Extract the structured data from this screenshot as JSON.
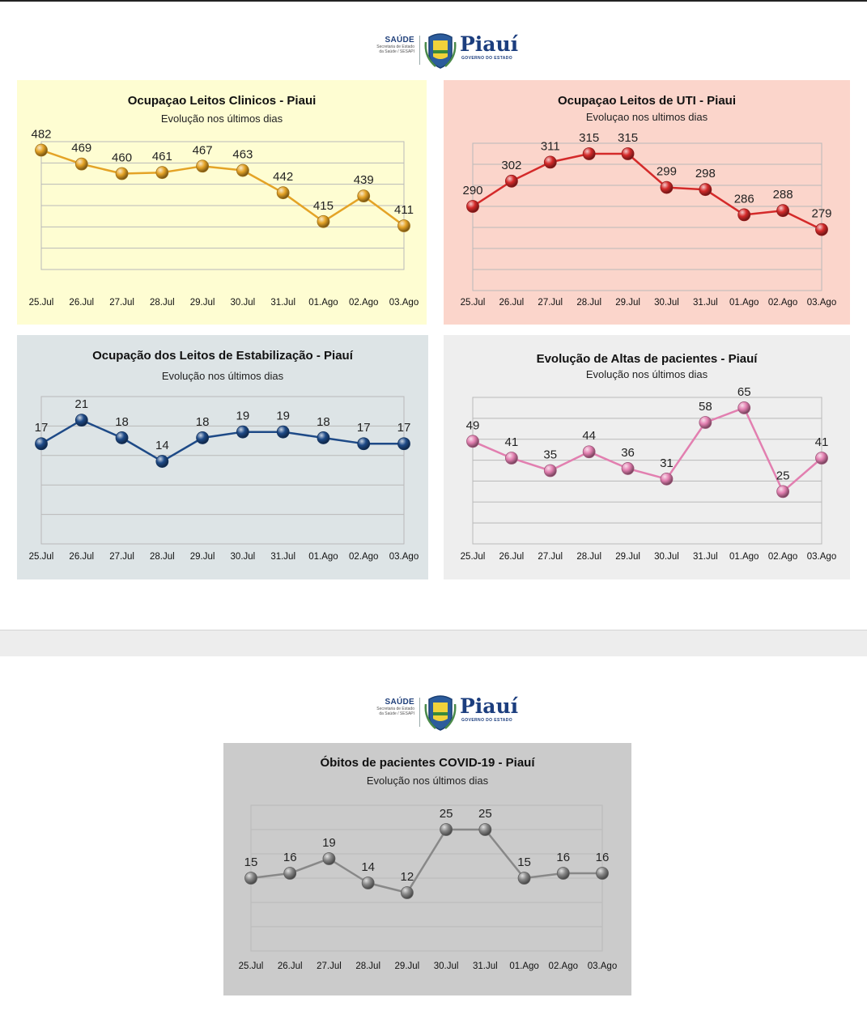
{
  "logo": {
    "saude": "SAÚDE",
    "secretaria_line1": "Secretaria de Estado",
    "secretaria_line2": "da Saúde / SESAPI",
    "state": "Piauí",
    "governo": "GOVERNO DO ESTADO"
  },
  "colors": {
    "panel_clinicos": "#fefdd2",
    "panel_uti": "#fbd5cb",
    "panel_estabilizacao": "#dde4e6",
    "panel_altas": "#eeeeee",
    "panel_obitos": "#cbcbcb",
    "series_clinicos": "#e4a326",
    "series_uti": "#d42a2a",
    "series_estabilizacao": "#1e4a87",
    "series_altas": "#e27fb0",
    "series_obitos": "#888888"
  },
  "chart_data": [
    {
      "type": "line",
      "title": "Ocupaçao Leitos Clinicos - Piaui",
      "subtitle": "Evolução nos últimos dias",
      "categories": [
        "25.Jul",
        "26.Jul",
        "27.Jul",
        "28.Jul",
        "29.Jul",
        "30.Jul",
        "31.Jul",
        "01.Ago",
        "02.Ago",
        "03.Ago"
      ],
      "series": [
        {
          "name": "",
          "values": [
            482,
            469,
            460,
            461,
            467,
            463,
            442,
            415,
            439,
            411
          ]
        }
      ],
      "ylim": [
        370,
        490
      ],
      "grid": true,
      "legend": "none"
    },
    {
      "type": "line",
      "title": "Ocupaçao Leitos de UTI - Piaui",
      "subtitle": "Evoluçao nos ultimos dias",
      "categories": [
        "25.Jul",
        "26.Jul",
        "27.Jul",
        "28.Jul",
        "29.Jul",
        "30.Jul",
        "31.Jul",
        "01.Ago",
        "02.Ago",
        "03.Ago"
      ],
      "series": [
        {
          "name": "",
          "values": [
            290,
            302,
            311,
            315,
            315,
            299,
            298,
            286,
            288,
            279
          ]
        }
      ],
      "ylim": [
        250,
        320
      ],
      "grid": true,
      "legend": "none"
    },
    {
      "type": "line",
      "title": "Ocupação dos Leitos de Estabilização - Piauí",
      "subtitle": "Evolução nos últimos dias",
      "categories": [
        "25.Jul",
        "26.Jul",
        "27.Jul",
        "28.Jul",
        "29.Jul",
        "30.Jul",
        "31.Jul",
        "01.Ago",
        "02.Ago",
        "03.Ago"
      ],
      "series": [
        {
          "name": "",
          "values": [
            17,
            21,
            18,
            14,
            18,
            19,
            19,
            18,
            17,
            17
          ]
        }
      ],
      "ylim": [
        0,
        25
      ],
      "grid": true,
      "legend": "none"
    },
    {
      "type": "line",
      "title": "Evolução de Altas de pacientes - Piauí",
      "subtitle": "Evolução nos últimos dias",
      "categories": [
        "25.Jul",
        "26.Jul",
        "27.Jul",
        "28.Jul",
        "29.Jul",
        "30.Jul",
        "31.Jul",
        "01.Ago",
        "02.Ago",
        "03.Ago"
      ],
      "series": [
        {
          "name": "",
          "values": [
            49,
            41,
            35,
            44,
            36,
            31,
            58,
            65,
            25,
            41
          ]
        }
      ],
      "ylim": [
        0,
        70
      ],
      "grid": true,
      "legend": "none"
    },
    {
      "type": "line",
      "title": "Óbitos de pacientes COVID-19 - Piauí",
      "subtitle": "Evolução nos últimos dias",
      "categories": [
        "25.Jul",
        "26.Jul",
        "27.Jul",
        "28.Jul",
        "29.Jul",
        "30.Jul",
        "31.Jul",
        "01.Ago",
        "02.Ago",
        "03.Ago"
      ],
      "series": [
        {
          "name": "",
          "values": [
            15,
            16,
            19,
            14,
            12,
            25,
            25,
            15,
            16,
            16
          ]
        }
      ],
      "ylim": [
        0,
        30
      ],
      "grid": true,
      "legend": "none"
    }
  ]
}
